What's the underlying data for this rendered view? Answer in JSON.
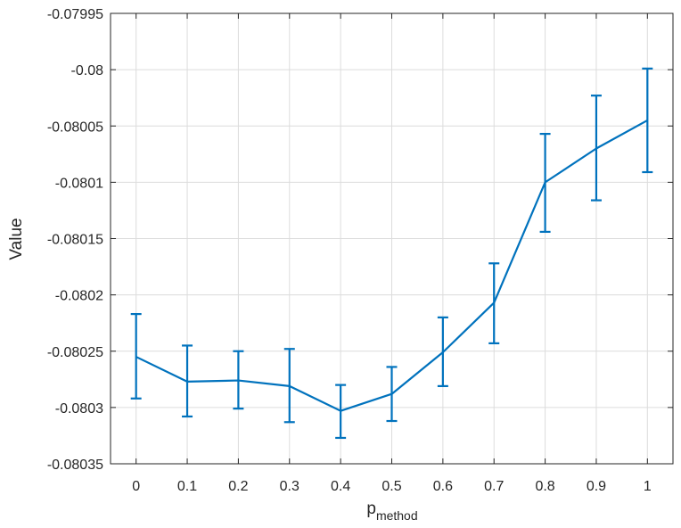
{
  "chart_data": {
    "type": "line",
    "xlabel_main": "p",
    "xlabel_sub": "method",
    "ylabel": "Value",
    "x": [
      0,
      0.1,
      0.2,
      0.3,
      0.4,
      0.5,
      0.6,
      0.7,
      0.8,
      0.9,
      1
    ],
    "x_tick_labels": [
      "0",
      "0.1",
      "0.2",
      "0.3",
      "0.4",
      "0.5",
      "0.6",
      "0.7",
      "0.8",
      "0.9",
      "1"
    ],
    "xlim": [
      -0.05,
      1.05
    ],
    "y_ticks": [
      -0.07995,
      -0.08,
      -0.08005,
      -0.0801,
      -0.08015,
      -0.0802,
      -0.08025,
      -0.0803,
      -0.08035
    ],
    "y_tick_labels": [
      "-0.07995",
      "-0.08",
      "-0.08005",
      "-0.0801",
      "-0.08015",
      "-0.0802",
      "-0.08025",
      "-0.0803",
      "-0.08035"
    ],
    "ylim": [
      -0.08035,
      -0.07995
    ],
    "grid": true,
    "series": [
      {
        "values": [
          -0.080255,
          -0.080277,
          -0.080276,
          -0.080281,
          -0.080303,
          -0.080288,
          -0.080251,
          -0.080207,
          -0.0801,
          -0.08007,
          -0.080045
        ],
        "err_low": [
          -0.080292,
          -0.080308,
          -0.080301,
          -0.080313,
          -0.080327,
          -0.080312,
          -0.080281,
          -0.080243,
          -0.080144,
          -0.080116,
          -0.080091
        ],
        "err_high": [
          -0.080217,
          -0.080245,
          -0.08025,
          -0.080248,
          -0.08028,
          -0.080264,
          -0.08022,
          -0.080172,
          -0.080057,
          -0.080023,
          -0.079999
        ],
        "color": "#0072BD"
      }
    ]
  }
}
